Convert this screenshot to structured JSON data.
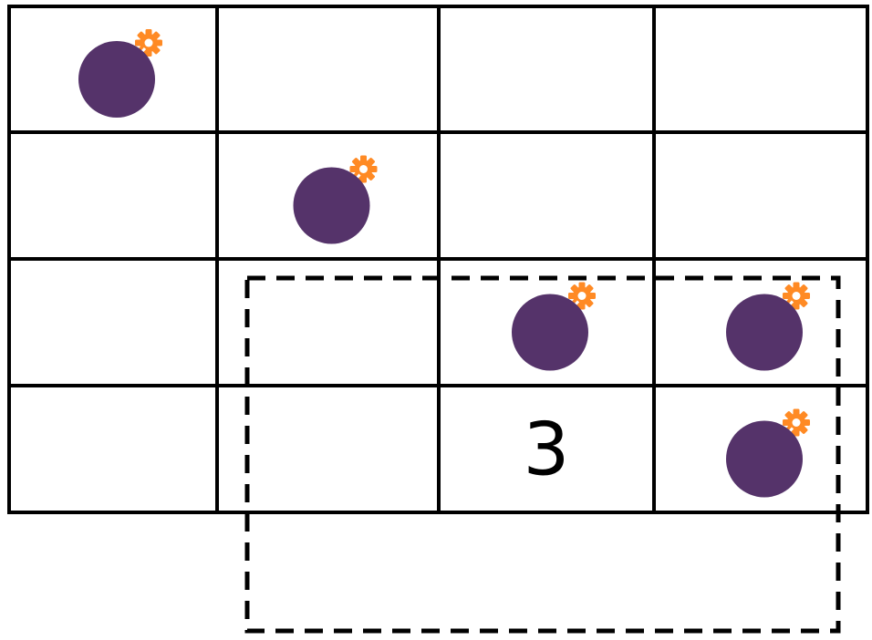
{
  "board": {
    "rows": 4,
    "cols": 4,
    "cells": [
      [
        {
          "type": "bomb"
        },
        {
          "type": "empty"
        },
        {
          "type": "empty"
        },
        {
          "type": "empty"
        }
      ],
      [
        {
          "type": "empty"
        },
        {
          "type": "bomb"
        },
        {
          "type": "empty"
        },
        {
          "type": "empty"
        }
      ],
      [
        {
          "type": "empty"
        },
        {
          "type": "empty"
        },
        {
          "type": "bomb"
        },
        {
          "type": "bomb"
        }
      ],
      [
        {
          "type": "empty"
        },
        {
          "type": "empty"
        },
        {
          "type": "number",
          "value": "3"
        },
        {
          "type": "bomb"
        }
      ]
    ]
  },
  "bomb_icon": "bomb-icon",
  "colors": {
    "grid_line": "#000000",
    "bomb_body": "#55336a",
    "bomb_highlight": "#7a4a99",
    "bomb_fuse": "#ff8a24",
    "selection_border": "#000000",
    "background": "#ffffff"
  }
}
